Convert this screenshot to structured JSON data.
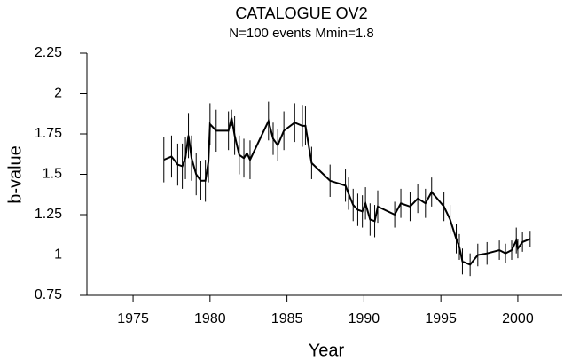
{
  "chart_data": {
    "type": "line",
    "title": "CATALOGUE OV2",
    "subtitle": "N=100 events   Mmin=1.8",
    "x_label": "Year",
    "y_label": "b-value",
    "color": "#000000",
    "x": [
      1977.0,
      1977.5,
      1977.9,
      1978.2,
      1978.4,
      1978.6,
      1978.8,
      1979.1,
      1979.4,
      1979.7,
      1979.9,
      1980.0,
      1980.4,
      1981.2,
      1981.4,
      1981.6,
      1981.9,
      1982.2,
      1982.4,
      1982.6,
      1983.8,
      1984.1,
      1984.4,
      1984.8,
      1985.5,
      1986.0,
      1986.2,
      1986.6,
      1987.8,
      1988.8,
      1989.0,
      1989.3,
      1989.6,
      1989.9,
      1990.1,
      1990.4,
      1990.7,
      1990.9,
      1992.0,
      1992.4,
      1993.0,
      1993.5,
      1994.0,
      1994.4,
      1995.2,
      1995.6,
      1996.0,
      1996.2,
      1996.4,
      1996.9,
      1997.4,
      1998.0,
      1998.8,
      1999.2,
      1999.6,
      1999.9,
      2000.0,
      2000.3,
      2000.8
    ],
    "values": [
      1.59,
      1.61,
      1.56,
      1.55,
      1.6,
      1.74,
      1.6,
      1.5,
      1.46,
      1.46,
      1.58,
      1.81,
      1.77,
      1.77,
      1.85,
      1.74,
      1.62,
      1.6,
      1.63,
      1.59,
      1.83,
      1.72,
      1.68,
      1.77,
      1.82,
      1.8,
      1.8,
      1.57,
      1.46,
      1.43,
      1.38,
      1.31,
      1.28,
      1.27,
      1.32,
      1.22,
      1.21,
      1.3,
      1.25,
      1.32,
      1.3,
      1.35,
      1.32,
      1.39,
      1.3,
      1.22,
      1.1,
      1.05,
      0.96,
      0.94,
      1.0,
      1.01,
      1.03,
      1.01,
      1.03,
      1.09,
      1.04,
      1.08,
      1.1
    ],
    "errors": [
      0.14,
      0.13,
      0.13,
      0.14,
      0.13,
      0.14,
      0.14,
      0.13,
      0.12,
      0.13,
      0.13,
      0.13,
      0.13,
      0.12,
      0.05,
      0.12,
      0.12,
      0.12,
      0.12,
      0.12,
      0.12,
      0.1,
      0.1,
      0.12,
      0.12,
      0.13,
      0.12,
      0.1,
      0.1,
      0.1,
      0.1,
      0.1,
      0.1,
      0.1,
      0.1,
      0.1,
      0.1,
      0.1,
      0.08,
      0.09,
      0.09,
      0.09,
      0.09,
      0.09,
      0.09,
      0.09,
      0.09,
      0.08,
      0.08,
      0.07,
      0.07,
      0.07,
      0.06,
      0.06,
      0.06,
      0.08,
      0.06,
      0.06,
      0.05
    ],
    "xlim": [
      1972,
      2003
    ],
    "xticks": [
      1975,
      1980,
      1985,
      1990,
      1995,
      2000
    ],
    "ylim": [
      0.75,
      2.25
    ],
    "yticks": [
      0.75,
      1,
      1.25,
      1.5,
      1.75,
      2,
      2.25
    ]
  }
}
